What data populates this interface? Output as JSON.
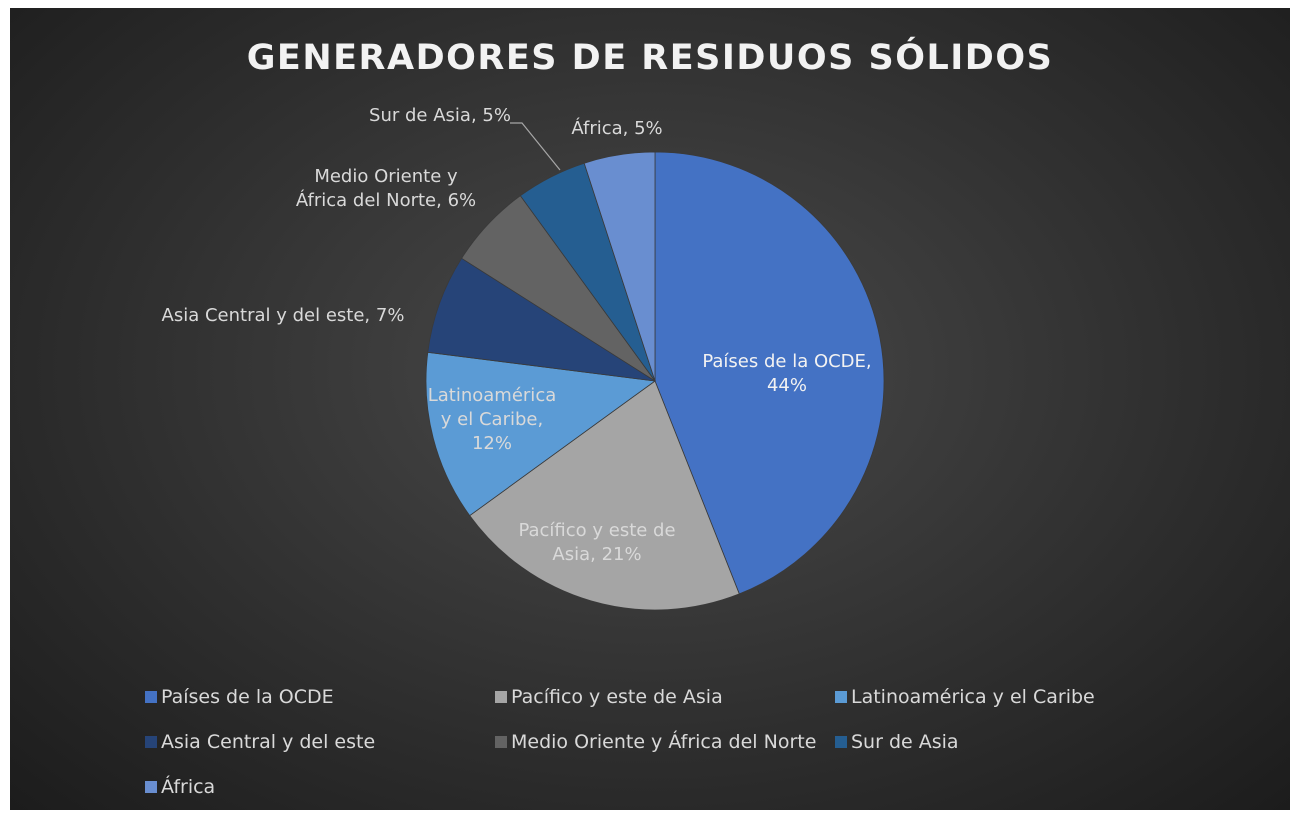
{
  "chart_data": {
    "type": "pie",
    "title": "GENERADORES DE RESIDUOS SÓLIDOS",
    "categories": [
      "Países de la OCDE",
      "Pacífico y este de Asia",
      "Latinoamérica y el Caribe",
      "Asia Central y del este",
      "Medio Oriente y África del Norte",
      "Sur de Asia",
      "África"
    ],
    "values": [
      44,
      21,
      12,
      7,
      6,
      5,
      5
    ],
    "value_labels": [
      "Países de la OCDE, 44%",
      "Pacífico y este de Asia, 21%",
      "Latinoamérica y el Caribe, 12%",
      "Asia Central y del este, 7%",
      "Medio Oriente y África del Norte, 6%",
      "Sur de Asia, 5%",
      "África, 5%"
    ],
    "colors": [
      "#4472c4",
      "#a5a5a5",
      "#5b9bd5",
      "#264478",
      "#636363",
      "#255e91",
      "#698ed0"
    ],
    "legend": "bottom"
  }
}
